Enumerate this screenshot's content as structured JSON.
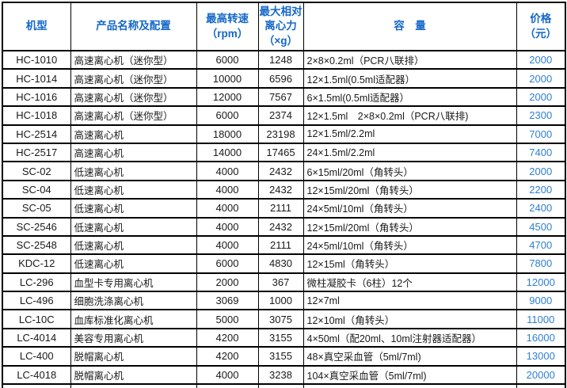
{
  "table": {
    "title_semantic": "centrifuge-product-price-list",
    "colors": {
      "header_text": "#1467c8",
      "price_text": "#2e7fd4",
      "body_text": "#1a1a1a",
      "border": "#000000",
      "background": "#ffffff"
    },
    "columns": [
      "机型",
      "产品名称及配置",
      "最高转速\n（rpm）",
      "最大相对\n离心力\n（×g）",
      "容　量",
      "价格\n（元）"
    ],
    "col_names": [
      "model-cell",
      "product-name-cell",
      "max-speed-cell",
      "max-rcf-cell",
      "capacity-cell",
      "price-cell"
    ],
    "rows": [
      [
        "HC-1010",
        "高速离心机（迷你型）",
        "6000",
        "1248",
        "2×8×0.2ml（PCR八联排）",
        "2000"
      ],
      [
        "HC-1014",
        "高速离心机（迷你型）",
        "10000",
        "6596",
        "12×1.5ml(0.5ml适配器）",
        "2000"
      ],
      [
        "HC-1016",
        "高速离心机（迷你型）",
        "12000",
        "7567",
        "6×1.5ml(0.5ml适配器）",
        "2000"
      ],
      [
        "HC-1018",
        "高速离心机（迷你型）",
        "6000",
        "2374",
        "12×1.5ml　2×8×0.2ml（PCR八联排)",
        "2300"
      ],
      [
        "HC-2514",
        "高速离心机",
        "18000",
        "23198",
        "12×1.5ml/2.2ml",
        "7000"
      ],
      [
        "HC-2517",
        "高速离心机",
        "14000",
        "17465",
        "24×1.5ml/2.2ml",
        "7400"
      ],
      [
        "SC-02",
        "低速离心机",
        "4000",
        "2432",
        "6×15ml/20ml（角转头）",
        "2000"
      ],
      [
        "SC-04",
        "低速离心机",
        "4000",
        "2432",
        "12×15ml/20ml（角转头）",
        "2200"
      ],
      [
        "SC-05",
        "低速离心机",
        "4000",
        "2111",
        "24×5ml/10ml（角转头）",
        "2400"
      ],
      [
        "SC-2546",
        "低速离心机",
        "4000",
        "2432",
        "12×15ml/20ml（角转头）",
        "4500"
      ],
      [
        "SC-2548",
        "低速离心机",
        "4000",
        "2111",
        "24×5ml/10ml（角转头）",
        "4700"
      ],
      [
        "KDC-12",
        "低速离心机",
        "6000",
        "4830",
        "12×15ml（角转头）",
        "7800"
      ],
      [
        "LC-296",
        "血型卡专用离心机",
        "2000",
        "367",
        "微柱凝胶卡（6柱）12个",
        "12000"
      ],
      [
        "LC-496",
        "细胞洗涤离心机",
        "3069",
        "1000",
        "12×7ml",
        "9000"
      ],
      [
        "LC-10C",
        "血库标准化离心机",
        "5000",
        "3075",
        "12×10ml（角转头）",
        "11000"
      ],
      [
        "LC-4014",
        "美容专用离心机",
        "4200",
        "3155",
        "4×50ml（配20ml、10ml注射器适配器）",
        "16000"
      ],
      [
        "LC-400",
        "脱帽离心机",
        "4200",
        "3155",
        "48×真空采血管（5ml/7ml)",
        "13000"
      ],
      [
        "LC-4018",
        "脱帽离心机",
        "4000",
        "3238",
        "104×真空采血管（5ml/7ml)",
        "20000"
      ]
    ]
  }
}
